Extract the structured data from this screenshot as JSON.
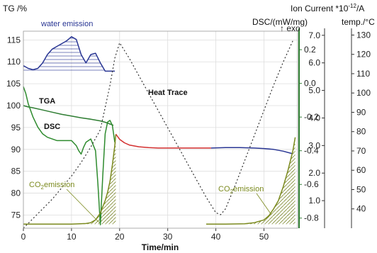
{
  "chart_data": {
    "type": "line",
    "title": "",
    "xlabel": "Time/min",
    "x_ticks": [
      "0",
      "10",
      "20",
      "30",
      "40",
      "50"
    ],
    "xlim": [
      0,
      57
    ],
    "axes": {
      "tg": {
        "label": "TG /%",
        "ticks": [
          "115",
          "110",
          "105",
          "100",
          "95",
          "90",
          "85",
          "80",
          "75"
        ],
        "ylim": [
          72,
          117
        ]
      },
      "dsc": {
        "label": "DSC/(mW/mg)",
        "sublabel": "↑ exo",
        "ticks": [
          "0.2",
          "0.0",
          "-0.2",
          "-0.4",
          "-0.6",
          "-0.8"
        ],
        "ylim": [
          -0.86,
          0.31
        ]
      },
      "ion": {
        "label": "Ion Current *10",
        "label_exp": "-12",
        "label_unit": "/A",
        "ticks": [
          "7.0",
          "6.0",
          "5.0",
          "4.0",
          "3.0",
          "2.0",
          "1.0"
        ],
        "ylim": [
          0,
          7.15
        ]
      },
      "temp": {
        "label": "temp./°C",
        "ticks": [
          "130",
          "120",
          "110",
          "100",
          "90",
          "80",
          "70",
          "60",
          "50",
          "40"
        ],
        "ylim": [
          30,
          132
        ]
      }
    },
    "annotations": {
      "water": "water emission",
      "tga": "TGA",
      "dsc": "DSC",
      "heat": "Heat Trace",
      "co2_left_a": "CO",
      "co2_left_sub": "2",
      "co2_left_b": "emission",
      "co2_right_a": "CO",
      "co2_right_sub": "2",
      "co2_right_b": "emission"
    },
    "colors": {
      "tga": "#2e7d32",
      "dsc": "#2e8b2e",
      "tga_red": "#d32f2f",
      "tga_blue": "#283593",
      "water": "#283593",
      "co2": "#7b8a1e",
      "heat": "#333333",
      "axis_green": "#2e7d32"
    },
    "series": [
      {
        "name": "TGA",
        "axis": "tg",
        "x": [
          0,
          1,
          2,
          4,
          6,
          8,
          10,
          12,
          14,
          16,
          17,
          18,
          18.7
        ],
        "y": [
          100,
          99.7,
          99.5,
          99,
          98.5,
          98,
          97.6,
          97.2,
          96.9,
          96.5,
          96.2,
          95.8,
          95.5
        ]
      },
      {
        "name": "",
        "axis": "tg",
        "x": [
          19.2,
          20,
          21,
          22,
          24,
          26,
          28,
          30,
          32,
          34,
          36,
          38,
          39
        ],
        "y": [
          93.5,
          92.3,
          91.5,
          91,
          90.6,
          90.4,
          90.3,
          90.3,
          90.3,
          90.3,
          90.3,
          90.3,
          90.3
        ]
      },
      {
        "name": "",
        "axis": "tg",
        "x": [
          39,
          42,
          45,
          48,
          50,
          52,
          54,
          56
        ],
        "y": [
          90.3,
          90.4,
          90.4,
          90.3,
          90.2,
          90,
          89.6,
          89
        ]
      },
      {
        "name": "DSC",
        "axis": "dsc",
        "x": [
          0,
          0.5,
          1,
          2,
          3,
          4,
          5,
          6,
          7,
          8,
          9,
          10,
          11,
          11.5,
          12,
          12.5,
          13,
          14,
          15,
          15.5,
          16,
          16.5,
          17,
          17.5,
          18,
          18.5,
          19
        ],
        "y": [
          -0.02,
          -0.06,
          -0.12,
          -0.2,
          -0.26,
          -0.3,
          -0.32,
          -0.33,
          -0.34,
          -0.34,
          -0.34,
          -0.34,
          -0.37,
          -0.4,
          -0.42,
          -0.38,
          -0.35,
          -0.33,
          -0.4,
          -0.6,
          -0.84,
          -0.55,
          -0.3,
          -0.23,
          -0.22,
          -0.25,
          -0.35
        ]
      },
      {
        "name": "water emission",
        "axis": "ion",
        "x": [
          0,
          1,
          2,
          3,
          4,
          5,
          6,
          7,
          8,
          9,
          10,
          11,
          12,
          13,
          14,
          15,
          16,
          17,
          18,
          19
        ],
        "y": [
          5.9,
          5.8,
          5.75,
          5.8,
          6.0,
          6.3,
          6.5,
          6.6,
          6.7,
          6.8,
          6.95,
          6.85,
          6.3,
          6.0,
          6.3,
          6.35,
          6.0,
          5.7,
          5.7,
          5.7
        ]
      },
      {
        "name": "CO2 emission",
        "axis": "ion",
        "x": [
          0,
          5,
          10,
          13,
          14,
          15,
          16,
          17,
          17.5,
          18,
          18.5,
          19,
          19.2
        ],
        "y": [
          0.15,
          0.15,
          0.15,
          0.17,
          0.2,
          0.3,
          0.55,
          1.0,
          1.3,
          1.7,
          2.3,
          3.0,
          3.4
        ]
      },
      {
        "name": "CO2 emission",
        "axis": "ion",
        "x": [
          38,
          42,
          46,
          48,
          50,
          51,
          52,
          53,
          54,
          55,
          56,
          56.5
        ],
        "y": [
          0.15,
          0.15,
          0.16,
          0.2,
          0.3,
          0.45,
          0.7,
          1.0,
          1.5,
          2.1,
          2.8,
          3.3
        ]
      },
      {
        "name": "Heat Trace",
        "axis": "temp",
        "x": [
          0,
          2,
          4,
          6,
          8,
          10,
          12,
          14,
          16,
          18,
          19,
          20,
          22,
          24,
          26,
          28,
          30,
          32,
          34,
          36,
          38,
          40,
          41,
          42,
          44,
          46,
          48,
          50,
          52,
          54,
          56
        ],
        "y": [
          30,
          35,
          40,
          45,
          51,
          57,
          64,
          72,
          81,
          104,
          118,
          126,
          118,
          109,
          100,
          91,
          82,
          73,
          64,
          55,
          46,
          38,
          37,
          40,
          52,
          65,
          78,
          91,
          104,
          116,
          127
        ]
      }
    ]
  }
}
